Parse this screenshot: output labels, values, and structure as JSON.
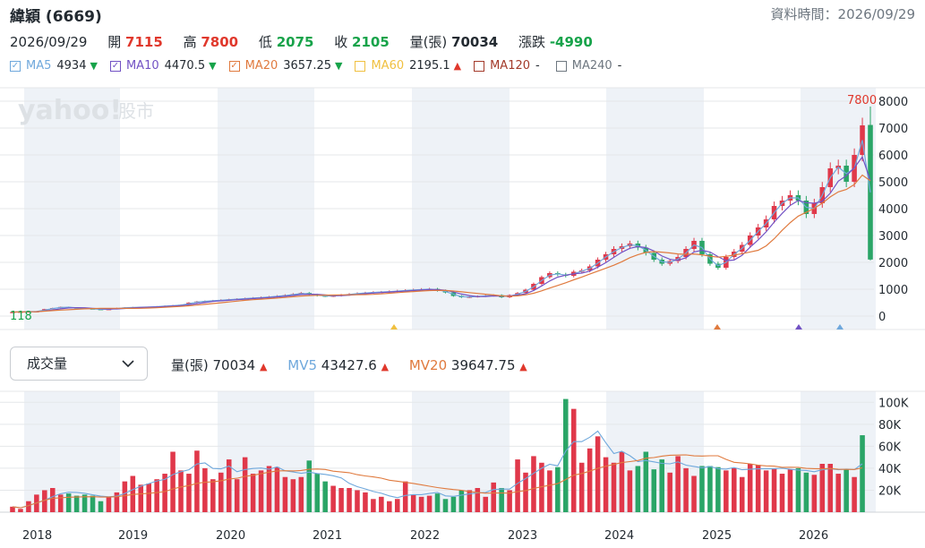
{
  "header": {
    "title": "緯穎 (6669)",
    "datetime": "資料時間：2026/09/29"
  },
  "ohlc": {
    "date": "2026/09/29",
    "open_label": "開",
    "open": "7115",
    "high_label": "高",
    "high": "7800",
    "low_label": "低",
    "low": "2075",
    "close_label": "收",
    "close": "2105",
    "volume_label": "量(張)",
    "volume": "70034",
    "change_label": "漲跌",
    "change": "-4990"
  },
  "ma_legend": [
    {
      "name": "MA5",
      "value": "4934",
      "arrow": "▼",
      "color": "#6fa8dc",
      "checked": true
    },
    {
      "name": "MA10",
      "value": "4470.5",
      "arrow": "▼",
      "color": "#7252c4",
      "checked": true
    },
    {
      "name": "MA20",
      "value": "3657.25",
      "arrow": "▼",
      "color": "#e07a3e",
      "checked": true
    },
    {
      "name": "MA60",
      "value": "2195.1",
      "arrow": "▲",
      "color": "#f0c040",
      "checked": false
    },
    {
      "name": "MA120",
      "value": "-",
      "arrow": "",
      "color": "#a33a2a",
      "checked": false
    },
    {
      "name": "MA240",
      "value": "-",
      "arrow": "",
      "color": "#6e7780",
      "checked": false
    }
  ],
  "watermark": {
    "brand": "yahoo!",
    "section": "股市"
  },
  "volume_panel": {
    "selector_label": "成交量",
    "vol_label": "量(張)",
    "vol_value": "70034",
    "vol_arrow": "▲",
    "mv5_label": "MV5",
    "mv5_value": "43427.6",
    "mv5_arrow": "▲",
    "mv20_label": "MV20",
    "mv20_value": "39647.75",
    "mv20_arrow": "▲"
  },
  "colors": {
    "up": "#e0384a",
    "down": "#2aa567",
    "ma5": "#6fa8dc",
    "ma10": "#7252c4",
    "ma20": "#e07a3e",
    "band": "#eef2f7"
  },
  "chart_data": {
    "type": "candlestick",
    "x_labels": [
      "2018",
      "2019",
      "2020",
      "2021",
      "2022",
      "2023",
      "2024",
      "2025",
      "2026"
    ],
    "price_axis": {
      "ticks": [
        0,
        1000,
        2000,
        3000,
        4000,
        5000,
        6000,
        7000,
        8000
      ],
      "ylim": [
        -500,
        8500
      ]
    },
    "volume_axis": {
      "ticks": [
        "20K",
        "40K",
        "60K",
        "80K",
        "100K"
      ],
      "tick_values": [
        20000,
        40000,
        60000,
        80000,
        100000
      ],
      "ylim": [
        0,
        110000
      ]
    },
    "max_label": "7800",
    "min_label": "118",
    "closes": [
      150,
      160,
      170,
      180,
      260,
      300,
      340,
      320,
      300,
      280,
      260,
      250,
      260,
      300,
      320,
      330,
      330,
      340,
      360,
      380,
      400,
      420,
      500,
      540,
      560,
      580,
      600,
      620,
      640,
      660,
      680,
      700,
      720,
      750,
      780,
      820,
      860,
      800,
      760,
      740,
      760,
      790,
      820,
      850,
      870,
      890,
      900,
      920,
      940,
      960,
      980,
      1000,
      1010,
      950,
      880,
      750,
      700,
      720,
      740,
      760,
      780,
      700,
      780,
      860,
      980,
      1200,
      1450,
      1600,
      1550,
      1500,
      1650,
      1700,
      1850,
      2100,
      2300,
      2500,
      2600,
      2700,
      2550,
      2350,
      2100,
      1950,
      2050,
      2200,
      2500,
      2800,
      2300,
      1950,
      1800,
      2200,
      2400,
      2650,
      3000,
      3300,
      3600,
      4100,
      4300,
      4500,
      4300,
      3800,
      4200,
      4800,
      5500,
      5600,
      5000,
      6000,
      7100,
      2105
    ],
    "volumes": [
      5000,
      3000,
      10000,
      16000,
      20000,
      22000,
      16000,
      17000,
      15000,
      16000,
      15000,
      10000,
      14000,
      18000,
      28000,
      33000,
      25000,
      26000,
      30000,
      35000,
      55000,
      38000,
      35000,
      56000,
      40000,
      30000,
      36000,
      48000,
      30000,
      50000,
      35000,
      38000,
      42000,
      41000,
      32000,
      30000,
      32000,
      47000,
      35000,
      28000,
      24000,
      22000,
      22000,
      20000,
      18000,
      12000,
      14000,
      10000,
      12000,
      28000,
      16000,
      14000,
      15000,
      17000,
      12000,
      14000,
      20000,
      20000,
      22000,
      14000,
      27000,
      22000,
      20000,
      48000,
      36000,
      51000,
      45000,
      38000,
      41000,
      103000,
      94000,
      45000,
      58000,
      69000,
      50000,
      45000,
      55000,
      38000,
      42000,
      55000,
      39000,
      48000,
      36000,
      51000,
      40000,
      33000,
      42000,
      42000,
      41000,
      38000,
      40000,
      32000,
      44000,
      43000,
      38000,
      40000,
      35000,
      39000,
      40000,
      36000,
      34000,
      44000,
      44000,
      35000,
      39000,
      32000,
      70034
    ],
    "ma5_label": "MA5",
    "ma10_label": "MA10",
    "ma20_label": "MA20"
  }
}
